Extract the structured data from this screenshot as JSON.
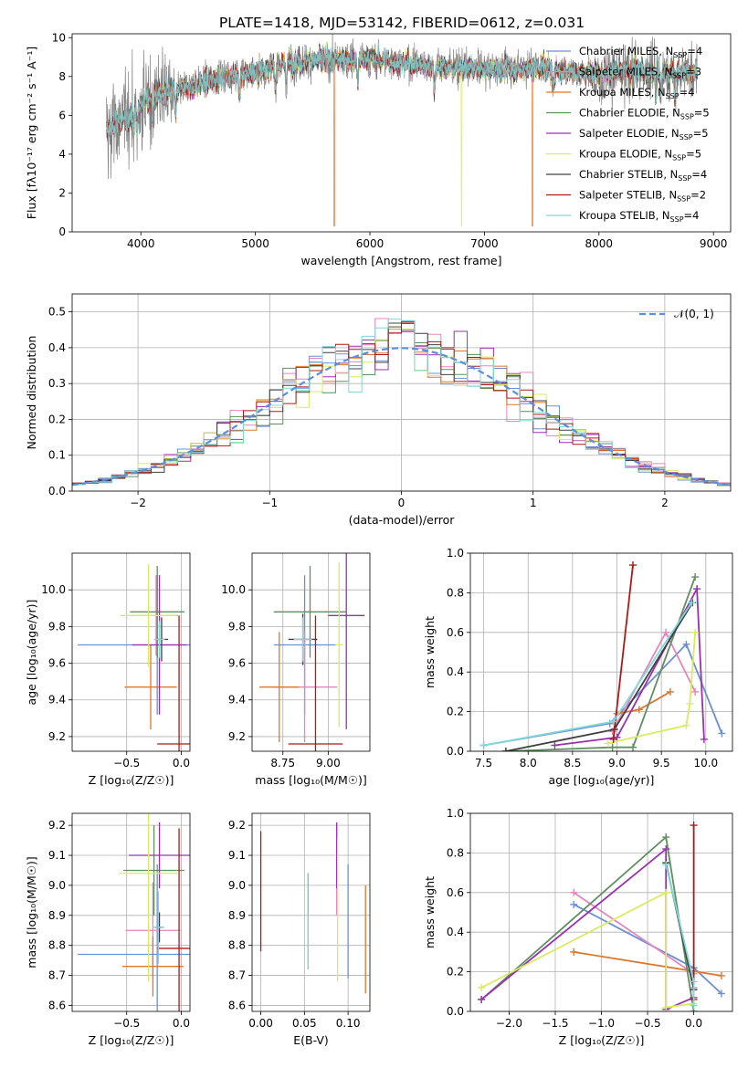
{
  "figure_title": "PLATE=1418, MJD=53142, FIBERID=0612, z=0.031",
  "models": [
    {
      "name": "Chabrier MILES",
      "nssp": "4",
      "color": "#6a8fd8"
    },
    {
      "name": "Salpeter MILES",
      "nssp": "3",
      "color": "#e585c0"
    },
    {
      "name": "Kroupa MILES",
      "nssp": "4",
      "color": "#e0762a"
    },
    {
      "name": "Chabrier ELODIE",
      "nssp": "5",
      "color": "#5f8f5f"
    },
    {
      "name": "Salpeter ELODIE",
      "nssp": "5",
      "color": "#9a30b0"
    },
    {
      "name": "Kroupa ELODIE",
      "nssp": "5",
      "color": "#d8ec5c"
    },
    {
      "name": "Chabrier STELIB",
      "nssp": "4",
      "color": "#404040"
    },
    {
      "name": "Salpeter STELIB",
      "nssp": "2",
      "color": "#b01818"
    },
    {
      "name": "Kroupa STELIB",
      "nssp": "4",
      "color": "#7fd8d8"
    }
  ],
  "chart_data": [
    {
      "id": "spectrum",
      "type": "line",
      "title": "PLATE=1418, MJD=53142, FIBERID=0612, z=0.031",
      "xlabel": "wavelength [Angstrom, rest frame]",
      "ylabel": "Flux [fλ10⁻¹⁷ erg cm⁻² s⁻¹ A⁻¹]",
      "xlim": [
        3400,
        9150
      ],
      "ylim": [
        0,
        10.2
      ],
      "xticks": [
        4000,
        5000,
        6000,
        7000,
        8000,
        9000
      ],
      "yticks": [
        0,
        2,
        4,
        6,
        8,
        10
      ],
      "grid": false,
      "legend": "right",
      "data_color": "#808080",
      "continuum": {
        "x": [
          3700,
          3800,
          3900,
          4000,
          4100,
          4300,
          4500,
          4700,
          5000,
          5200,
          5500,
          5800,
          6000,
          6300,
          6600,
          7000,
          7300,
          7500,
          7700,
          8000,
          8300,
          8600,
          8850
        ],
        "y": [
          5.2,
          5.6,
          6.0,
          6.6,
          7.0,
          7.3,
          7.6,
          8.0,
          8.2,
          8.6,
          8.8,
          8.9,
          8.9,
          8.7,
          8.5,
          8.4,
          8.4,
          8.5,
          8.3,
          8.1,
          8.3,
          8.2,
          8.3
        ]
      }
    },
    {
      "id": "residuals",
      "type": "line",
      "xlabel": "(data-model)/error",
      "ylabel": "Normed distribution",
      "xlim": [
        -2.5,
        2.5
      ],
      "ylim": [
        0,
        0.55
      ],
      "xticks": [
        -2,
        -1,
        0,
        1,
        2
      ],
      "yticks": [
        0.0,
        0.1,
        0.2,
        0.3,
        0.4,
        0.5
      ],
      "grid": true,
      "legend": "top-right",
      "gaussian_label": "𝒩(0, 1)",
      "gaussian_color": "#5b8ee0"
    },
    {
      "id": "age_vs_Z",
      "type": "scatter",
      "xlabel": "Z [log₁₀(Z/Z☉)]",
      "ylabel": "age  [log₁₀(age/yr)]",
      "xlim": [
        -1.0,
        0.08
      ],
      "ylim": [
        9.12,
        10.2
      ],
      "xticks": [
        -0.5,
        0.0
      ],
      "yticks": [
        9.2,
        9.4,
        9.6,
        9.8,
        10.0
      ],
      "grid": true,
      "points": [
        {
          "m": 0,
          "x": -0.22,
          "y": 9.7,
          "xerr": 0.73,
          "yerr": 0.38
        },
        {
          "m": 1,
          "x": -0.23,
          "y": 9.86,
          "xerr": 0.2,
          "yerr": 0.22
        },
        {
          "m": 2,
          "x": -0.28,
          "y": 9.47,
          "xerr": 0.24,
          "yerr": 0.23
        },
        {
          "m": 3,
          "x": -0.22,
          "y": 9.88,
          "xerr": 0.25,
          "yerr": 0.25
        },
        {
          "m": 4,
          "x": -0.2,
          "y": 9.7,
          "xerr": 0.25,
          "yerr": 0.38
        },
        {
          "m": 5,
          "x": -0.3,
          "y": 9.86,
          "xerr": 0.26,
          "yerr": 0.28
        },
        {
          "m": 6,
          "x": -0.18,
          "y": 9.73,
          "xerr": 0.06,
          "yerr": 0.12
        },
        {
          "m": 7,
          "x": -0.02,
          "y": 9.16,
          "xerr": 0.2,
          "yerr": 0.7
        },
        {
          "m": 8,
          "x": -0.2,
          "y": 9.73,
          "xerr": 0.05,
          "yerr": 0.1
        }
      ]
    },
    {
      "id": "age_vs_mass",
      "type": "scatter",
      "xlabel": "mass [log₁₀(M/M☉)]",
      "xlim": [
        8.58,
        9.23
      ],
      "ylim": [
        9.12,
        10.2
      ],
      "xticks": [
        8.75,
        9.0
      ],
      "yticks": [
        9.2,
        9.4,
        9.6,
        9.8,
        10.0
      ],
      "grid": true,
      "points": [
        {
          "m": 0,
          "x": 8.87,
          "y": 9.7,
          "xerr": 0.17,
          "yerr": 0.38
        },
        {
          "m": 1,
          "x": 8.87,
          "y": 9.47,
          "xerr": 0.18,
          "yerr": 0.3
        },
        {
          "m": 2,
          "x": 8.73,
          "y": 9.47,
          "xerr": 0.11,
          "yerr": 0.3
        },
        {
          "m": 3,
          "x": 8.9,
          "y": 9.88,
          "xerr": 0.2,
          "yerr": 0.25
        },
        {
          "m": 4,
          "x": 9.1,
          "y": 9.86,
          "xerr": 0.1,
          "yerr": 0.62
        },
        {
          "m": 5,
          "x": 9.06,
          "y": 9.7,
          "xerr": 0.02,
          "yerr": 0.45
        },
        {
          "m": 6,
          "x": 8.86,
          "y": 9.73,
          "xerr": 0.08,
          "yerr": 0.14
        },
        {
          "m": 7,
          "x": 8.93,
          "y": 9.16,
          "xerr": 0.15,
          "yerr": 0.7
        },
        {
          "m": 8,
          "x": 8.86,
          "y": 9.73,
          "xerr": 0.05,
          "yerr": 0.12
        }
      ]
    },
    {
      "id": "mass_weight_vs_age",
      "type": "line",
      "xlabel": "age  [log₁₀(age/yr)]",
      "ylabel": "mass weight",
      "xlim": [
        7.35,
        10.3
      ],
      "ylim": [
        0,
        1.0
      ],
      "xticks": [
        7.5,
        8.0,
        8.5,
        9.0,
        9.5,
        10.0
      ],
      "yticks": [
        0.0,
        0.2,
        0.4,
        0.6,
        0.8,
        1.0
      ],
      "grid": true,
      "series": [
        {
          "m": 0,
          "x": [
            7.5,
            8.92,
            9.78,
            10.18
          ],
          "y": [
            0.03,
            0.14,
            0.54,
            0.09
          ]
        },
        {
          "m": 1,
          "x": [
            8.95,
            9.55,
            9.88
          ],
          "y": [
            0.1,
            0.6,
            0.3
          ]
        },
        {
          "m": 2,
          "x": [
            9.0,
            9.25,
            9.6
          ],
          "y": [
            0.19,
            0.21,
            0.3
          ]
        },
        {
          "m": 3,
          "x": [
            7.75,
            8.95,
            9.18,
            9.88
          ],
          "y": [
            0.0,
            0.02,
            0.02,
            0.88
          ]
        },
        {
          "m": 4,
          "x": [
            8.3,
            9.0,
            9.9,
            9.98
          ],
          "y": [
            0.03,
            0.07,
            0.82,
            0.06
          ]
        },
        {
          "m": 5,
          "x": [
            8.9,
            9.78,
            9.82,
            9.88
          ],
          "y": [
            0.04,
            0.13,
            0.24,
            0.6
          ]
        },
        {
          "m": 6,
          "x": [
            7.75,
            8.97,
            9.85
          ],
          "y": [
            0.0,
            0.11,
            0.75
          ]
        },
        {
          "m": 7,
          "x": [
            8.96,
            9.18
          ],
          "y": [
            0.06,
            0.94
          ]
        },
        {
          "m": 8,
          "x": [
            7.5,
            8.96,
            9.84
          ],
          "y": [
            0.03,
            0.15,
            0.75
          ]
        }
      ]
    },
    {
      "id": "mass_vs_Z",
      "type": "scatter",
      "xlabel": "Z [log₁₀(Z/Z☉)]",
      "ylabel": "mass [log₁₀(M/M☉)]",
      "xlim": [
        -1.0,
        0.08
      ],
      "ylim": [
        8.58,
        9.24
      ],
      "xticks": [
        -0.5,
        0.0
      ],
      "yticks": [
        8.6,
        8.7,
        8.8,
        8.9,
        9.0,
        9.1,
        9.2
      ],
      "grid": true,
      "points": [
        {
          "m": 0,
          "x": -0.22,
          "y": 8.77,
          "xerr": 0.73,
          "yerr": 0.3
        },
        {
          "m": 1,
          "x": -0.26,
          "y": 8.85,
          "xerr": 0.25,
          "yerr": 0.16
        },
        {
          "m": 2,
          "x": -0.26,
          "y": 8.73,
          "xerr": 0.28,
          "yerr": 0.1
        },
        {
          "m": 3,
          "x": -0.25,
          "y": 9.05,
          "xerr": 0.28,
          "yerr": 0.15
        },
        {
          "m": 4,
          "x": -0.2,
          "y": 9.1,
          "xerr": 0.28,
          "yerr": 0.11
        },
        {
          "m": 5,
          "x": -0.3,
          "y": 9.04,
          "xerr": 0.27,
          "yerr": 0.36
        },
        {
          "m": 6,
          "x": -0.2,
          "y": 8.86,
          "xerr": 0.04,
          "yerr": 0.05
        },
        {
          "m": 7,
          "x": -0.02,
          "y": 8.79,
          "xerr": 0.2,
          "yerr": 0.4
        },
        {
          "m": 8,
          "x": -0.21,
          "y": 8.86,
          "xerr": 0.05,
          "yerr": 0.12
        }
      ]
    },
    {
      "id": "mass_vs_EBV",
      "type": "scatter",
      "xlabel": "E(B-V)",
      "xlim": [
        -0.01,
        0.125
      ],
      "ylim": [
        8.58,
        9.24
      ],
      "xticks": [
        0.0,
        0.05,
        0.1
      ],
      "yticks": [
        8.6,
        8.7,
        8.8,
        8.9,
        9.0,
        9.1,
        9.2
      ],
      "grid": true,
      "points": [
        {
          "m": 0,
          "x": 0.1,
          "y": 8.88,
          "xerr": 0,
          "yerr": 0.19
        },
        {
          "m": 1,
          "x": 0.087,
          "y": 9.05,
          "xerr": 0,
          "yerr": 0.15
        },
        {
          "m": 2,
          "x": 0.12,
          "y": 8.82,
          "xerr": 0,
          "yerr": 0.18
        },
        {
          "m": 3,
          "x": 0.054,
          "y": 8.88,
          "xerr": 0,
          "yerr": 0.16
        },
        {
          "m": 4,
          "x": 0.087,
          "y": 9.1,
          "xerr": 0,
          "yerr": 0.11
        },
        {
          "m": 5,
          "x": 0.088,
          "y": 8.92,
          "xerr": 0,
          "yerr": 0.24
        },
        {
          "m": 6,
          "x": 0.054,
          "y": 8.97,
          "xerr": 0,
          "yerr": 0.07
        },
        {
          "m": 7,
          "x": 0.0,
          "y": 8.98,
          "xerr": 0,
          "yerr": 0.2
        },
        {
          "m": 8,
          "x": 0.054,
          "y": 8.88,
          "xerr": 0,
          "yerr": 0.16
        }
      ]
    },
    {
      "id": "mass_weight_vs_Z",
      "type": "line",
      "xlabel": "Z [log₁₀(Z/Z☉)]",
      "ylabel": "mass weight",
      "xlim": [
        -2.42,
        0.42
      ],
      "ylim": [
        0,
        1.0
      ],
      "xticks": [
        -2.0,
        -1.5,
        -1.0,
        -0.5,
        0.0
      ],
      "yticks": [
        0.0,
        0.2,
        0.4,
        0.6,
        0.8,
        1.0
      ],
      "grid": true,
      "series": [
        {
          "m": 0,
          "x": [
            -1.3,
            0.0,
            0.3
          ],
          "y": [
            0.54,
            0.22,
            0.09
          ]
        },
        {
          "m": 1,
          "x": [
            -1.3,
            0.0,
            0.0
          ],
          "y": [
            0.6,
            0.19,
            0.12
          ]
        },
        {
          "m": 2,
          "x": [
            -1.3,
            0.3
          ],
          "y": [
            0.3,
            0.18
          ]
        },
        {
          "m": 3,
          "x": [
            -2.3,
            -0.3,
            0.0
          ],
          "y": [
            0.06,
            0.88,
            0.0
          ]
        },
        {
          "m": 4,
          "x": [
            -2.3,
            -0.3,
            -0.3,
            0.0
          ],
          "y": [
            0.06,
            0.82,
            0.01,
            0.07
          ]
        },
        {
          "m": 5,
          "x": [
            -2.3,
            -0.3,
            -0.3,
            0.0
          ],
          "y": [
            0.12,
            0.6,
            0.02,
            0.04
          ]
        },
        {
          "m": 6,
          "x": [
            -0.3,
            0.0
          ],
          "y": [
            0.75,
            0.11
          ]
        },
        {
          "m": 7,
          "x": [
            0.0,
            0.0
          ],
          "y": [
            0.06,
            0.94
          ]
        },
        {
          "m": 8,
          "x": [
            -0.3,
            0.0,
            0.0
          ],
          "y": [
            0.74,
            0.15,
            0.03
          ]
        }
      ]
    }
  ]
}
